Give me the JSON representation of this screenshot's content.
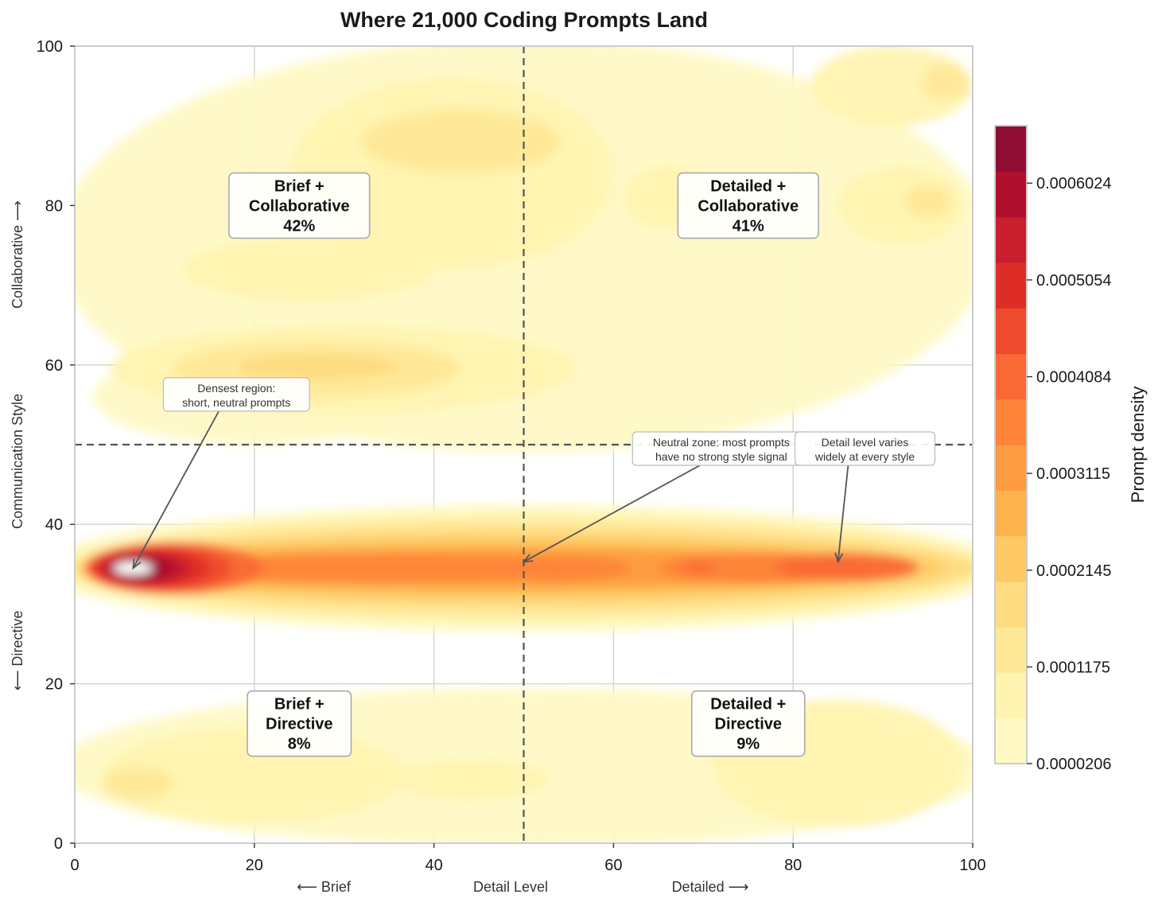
{
  "chart_data": {
    "type": "heatmap",
    "title": "Where 21,000 Coding Prompts Land",
    "xlabel": "Detail Level",
    "ylabel": "Communication Style",
    "x_side_labels": {
      "low": "⟵ Brief",
      "high": "Detailed ⟶"
    },
    "y_side_labels": {
      "low": "⟵ Directive",
      "high": "Collaborative ⟶"
    },
    "xlim": [
      0,
      100
    ],
    "ylim": [
      0,
      100
    ],
    "x_ticks": [
      "0",
      "20",
      "40",
      "60",
      "80",
      "100"
    ],
    "y_ticks": [
      "0",
      "20",
      "40",
      "60",
      "80",
      "100"
    ],
    "grid": true,
    "divider_x": 50,
    "divider_y": 50,
    "quadrants": [
      {
        "line1": "Brief +",
        "line2": "Collaborative",
        "pct": "42%",
        "x": 25,
        "y": 80
      },
      {
        "line1": "Detailed +",
        "line2": "Collaborative",
        "pct": "41%",
        "x": 75,
        "y": 80
      },
      {
        "line1": "Brief +",
        "line2": "Directive",
        "pct": "8%",
        "x": 25,
        "y": 15
      },
      {
        "line1": "Detailed +",
        "line2": "Directive",
        "pct": "9%",
        "x": 75,
        "y": 15
      }
    ],
    "annotations": [
      {
        "line1": "Densest region:",
        "line2": "short, neutral prompts",
        "text_x": 18,
        "text_y": 56.3,
        "target_x": 6.5,
        "target_y": 34.5
      },
      {
        "line1": "Neutral zone: most prompts",
        "line2": "have no strong style signal",
        "text_x": 72,
        "text_y": 49.5,
        "target_x": 50,
        "target_y": 35.3
      },
      {
        "line1": "Detail level varies",
        "line2": "widely at every style",
        "text_x": 88,
        "text_y": 49.5,
        "target_x": 85,
        "target_y": 35.3
      }
    ],
    "colorbar": {
      "label": "Prompt density",
      "min": 2.06e-05,
      "max": 0.00066,
      "ticks": [
        "0.0000206",
        "0.0001175",
        "0.0002145",
        "0.0003115",
        "0.0004084",
        "0.0005054",
        "0.0006024"
      ],
      "levels": [
        "#fff9c4",
        "#fff3b0",
        "#ffe898",
        "#fedb80",
        "#fec965",
        "#feb24c",
        "#fd9c40",
        "#fd8439",
        "#f96a36",
        "#ee4a2e",
        "#de2d26",
        "#c81e2e",
        "#b10f2e",
        "#8f0d33"
      ]
    },
    "density_blobs": [
      {
        "band": "collaborative",
        "x": 50,
        "y": 75,
        "rx": 52,
        "ry": 26,
        "level": 0
      },
      {
        "band": "collaborative",
        "x": 20,
        "y": 56,
        "rx": 18,
        "ry": 6,
        "level": 0
      },
      {
        "band": "collaborative",
        "x": 42,
        "y": 84,
        "rx": 18,
        "ry": 12,
        "level": 1
      },
      {
        "band": "collaborative",
        "x": 43,
        "y": 88,
        "rx": 11,
        "ry": 4,
        "level": 2
      },
      {
        "band": "collaborative",
        "x": 30,
        "y": 59.5,
        "rx": 26,
        "ry": 5.5,
        "level": 1
      },
      {
        "band": "collaborative",
        "x": 27,
        "y": 59.5,
        "rx": 16,
        "ry": 3.5,
        "level": 2
      },
      {
        "band": "collaborative",
        "x": 27,
        "y": 59.8,
        "rx": 9,
        "ry": 1.6,
        "level": 3
      },
      {
        "band": "collaborative",
        "x": 26,
        "y": 72,
        "rx": 14,
        "ry": 4,
        "level": 1
      },
      {
        "band": "collaborative",
        "x": 91,
        "y": 95,
        "rx": 9,
        "ry": 5,
        "level": 1
      },
      {
        "band": "collaborative",
        "x": 97,
        "y": 95.5,
        "rx": 2.5,
        "ry": 2.2,
        "level": 2
      },
      {
        "band": "collaborative",
        "x": 92,
        "y": 80,
        "rx": 7,
        "ry": 5,
        "level": 1
      },
      {
        "band": "collaborative",
        "x": 95,
        "y": 80.5,
        "rx": 2.5,
        "ry": 2,
        "level": 2
      },
      {
        "band": "collaborative",
        "x": 66,
        "y": 81,
        "rx": 5,
        "ry": 4,
        "level": 1
      },
      {
        "band": "neutral",
        "x": 50,
        "y": 34.5,
        "rx": 54,
        "ry": 8,
        "level": 0
      },
      {
        "band": "neutral",
        "x": 50,
        "y": 34.5,
        "rx": 52,
        "ry": 7,
        "level": 1
      },
      {
        "band": "neutral",
        "x": 50,
        "y": 34.5,
        "rx": 51,
        "ry": 6,
        "level": 2
      },
      {
        "band": "neutral",
        "x": 50,
        "y": 34.5,
        "rx": 50,
        "ry": 5,
        "level": 3
      },
      {
        "band": "neutral",
        "x": 49,
        "y": 34.5,
        "rx": 48,
        "ry": 4,
        "level": 4
      },
      {
        "band": "neutral",
        "x": 48,
        "y": 34.5,
        "rx": 46,
        "ry": 3,
        "level": 5
      },
      {
        "band": "neutral",
        "x": 46,
        "y": 34.5,
        "rx": 43,
        "ry": 2.3,
        "level": 6
      },
      {
        "band": "neutral",
        "x": 35,
        "y": 34.5,
        "rx": 25,
        "ry": 1.6,
        "level": 7
      },
      {
        "band": "neutral",
        "x": 54,
        "y": 34.5,
        "rx": 8,
        "ry": 1.5,
        "level": 7
      },
      {
        "band": "neutral",
        "x": 76,
        "y": 34.5,
        "rx": 11,
        "ry": 2,
        "level": 7
      },
      {
        "band": "neutral",
        "x": 86,
        "y": 34.6,
        "rx": 8,
        "ry": 1.8,
        "level": 8
      },
      {
        "band": "neutral",
        "x": 69.5,
        "y": 34.6,
        "rx": 2,
        "ry": 0.7,
        "level": 8
      },
      {
        "band": "neutral",
        "x": 11,
        "y": 34.5,
        "rx": 10,
        "ry": 3.3,
        "level": 8
      },
      {
        "band": "neutral",
        "x": 9.5,
        "y": 34.5,
        "rx": 8,
        "ry": 2.9,
        "level": 9
      },
      {
        "band": "neutral",
        "x": 8.5,
        "y": 34.5,
        "rx": 6.5,
        "ry": 2.5,
        "level": 10
      },
      {
        "band": "neutral",
        "x": 8,
        "y": 34.5,
        "rx": 5,
        "ry": 2.1,
        "level": 11
      },
      {
        "band": "neutral",
        "x": 7.5,
        "y": 34.5,
        "rx": 4,
        "ry": 1.7,
        "level": 12
      },
      {
        "band": "neutral",
        "x": 7,
        "y": 34.5,
        "rx": 3,
        "ry": 1.3,
        "level": 13
      },
      {
        "band": "directive",
        "x": 50,
        "y": 9.5,
        "rx": 52,
        "ry": 10,
        "level": 0
      },
      {
        "band": "directive",
        "x": 20,
        "y": 8.5,
        "rx": 17,
        "ry": 6,
        "level": 1
      },
      {
        "band": "directive",
        "x": 85,
        "y": 10,
        "rx": 14,
        "ry": 8,
        "level": 1
      },
      {
        "band": "directive",
        "x": 44,
        "y": 8,
        "rx": 9,
        "ry": 2.5,
        "level": 1
      },
      {
        "band": "directive",
        "x": 7,
        "y": 7.5,
        "rx": 4,
        "ry": 2,
        "level": 2
      }
    ]
  }
}
